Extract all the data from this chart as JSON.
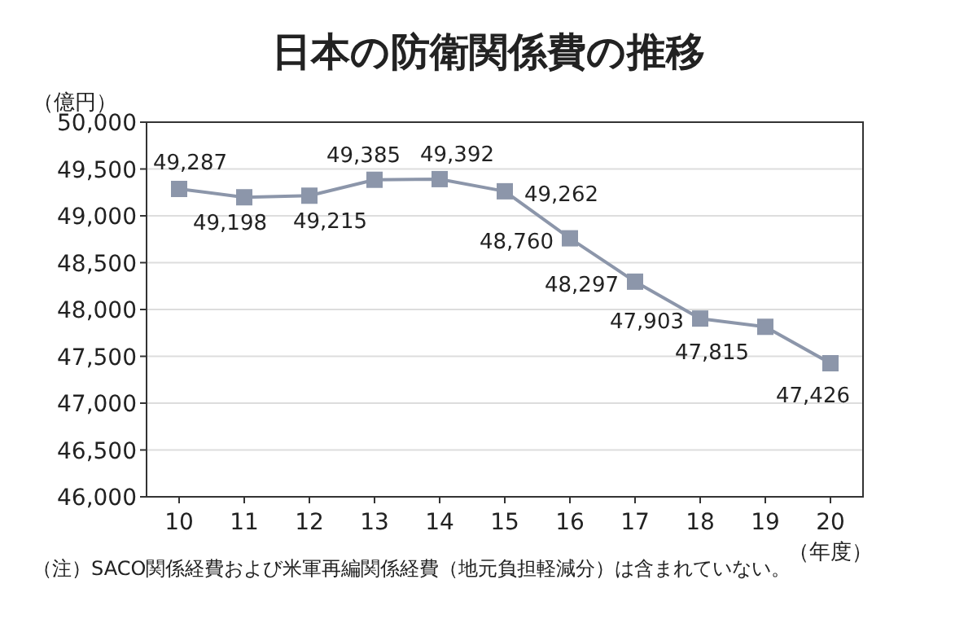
{
  "chart_data": {
    "type": "line",
    "title": "日本の防衛関係費の推移",
    "ylabel": "（億円）",
    "xlabel": "（年度）",
    "categories": [
      "10",
      "11",
      "12",
      "13",
      "14",
      "15",
      "16",
      "17",
      "18",
      "19",
      "20"
    ],
    "series": [
      {
        "color": "#8c96aa",
        "values": [
          49287,
          49198,
          49215,
          49385,
          49392,
          49262,
          48760,
          48297,
          47903,
          47815,
          47426
        ],
        "value_labels": [
          "49,287",
          "49,198",
          "49,215",
          "49,385",
          "49,392",
          "49,262",
          "48,760",
          "48,297",
          "47,903",
          "47,815",
          "47,426"
        ]
      }
    ],
    "ylim": [
      46000,
      50000
    ],
    "yticks": [
      {
        "value": 46000,
        "label": "46,000"
      },
      {
        "value": 46500,
        "label": "46,500"
      },
      {
        "value": 47000,
        "label": "47,000"
      },
      {
        "value": 47500,
        "label": "47,500"
      },
      {
        "value": 48000,
        "label": "48,000"
      },
      {
        "value": 48500,
        "label": "48,500"
      },
      {
        "value": 49000,
        "label": "49,000"
      },
      {
        "value": 49500,
        "label": "49,500"
      },
      {
        "value": 50000,
        "label": "50,000"
      }
    ],
    "grid": "y",
    "marker": "square",
    "line_style": "solid",
    "annotations": [
      "（注）SACO関係経費および米軍再編関係経費（地元負担軽減分）は含まれていない。"
    ]
  }
}
